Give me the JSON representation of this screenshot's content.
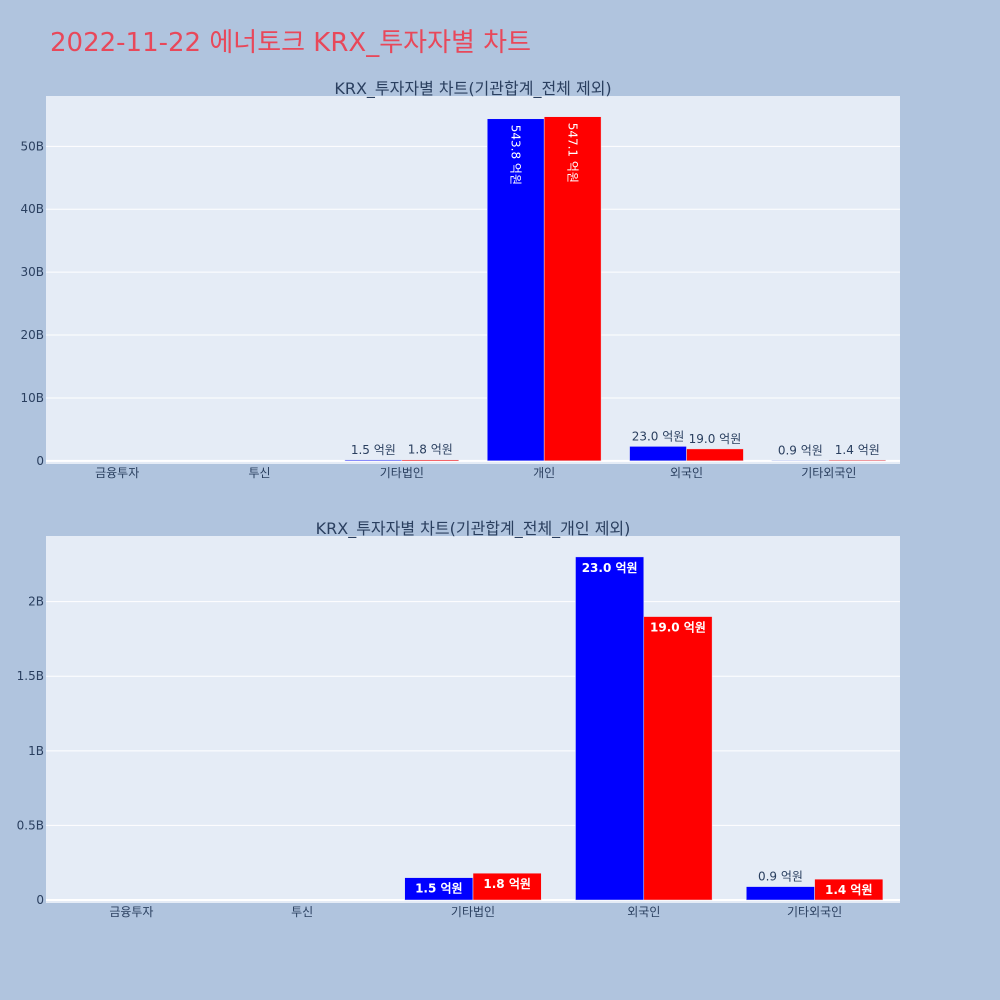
{
  "title": "2022-11-22 에너토크 KRX_투자자별 차트",
  "colors": {
    "background": "#b0c4de",
    "plot_bg": "#e5ecf6",
    "title": "#e8485a",
    "series_a": "#0000ff",
    "series_b": "#ff0000",
    "grid": "#ffffff"
  },
  "chart_data": [
    {
      "type": "bar",
      "title": "KRX_투자자별 차트(기관합계_전체 제외)",
      "categories": [
        "금융투자",
        "투신",
        "기타법인",
        "개인",
        "외국인",
        "기타외국인"
      ],
      "series": [
        {
          "color": "#0000ff",
          "values": [
            0,
            0,
            150000000,
            54380000000,
            2300000000,
            90000000
          ],
          "labels": [
            "",
            "",
            "1.5 억원",
            "543.8 억원",
            "23.0 억원",
            "0.9 억원"
          ]
        },
        {
          "color": "#ff0000",
          "values": [
            0,
            0,
            180000000,
            54710000000,
            1900000000,
            140000000
          ],
          "labels": [
            "",
            "",
            "1.8 억원",
            "547.1 억원",
            "19.0 억원",
            "1.4 억원"
          ]
        }
      ],
      "ylim": [
        -500000000,
        58000000000
      ],
      "yticks": [
        0,
        10000000000,
        20000000000,
        30000000000,
        40000000000,
        50000000000
      ],
      "ytick_labels": [
        "0",
        "10B",
        "20B",
        "30B",
        "40B",
        "50B"
      ],
      "xlabel": "",
      "ylabel": "",
      "grid": true
    },
    {
      "type": "bar",
      "title": "KRX_투자자별 차트(기관합계_전체_개인 제외)",
      "categories": [
        "금융투자",
        "투신",
        "기타법인",
        "외국인",
        "기타외국인"
      ],
      "series": [
        {
          "color": "#0000ff",
          "values": [
            0,
            0,
            150000000,
            2300000000,
            90000000
          ],
          "labels": [
            "",
            "",
            "1.5 억원",
            "23.0 억원",
            "0.9 억원"
          ]
        },
        {
          "color": "#ff0000",
          "values": [
            0,
            0,
            180000000,
            1900000000,
            140000000
          ],
          "labels": [
            "",
            "",
            "1.8 억원",
            "19.0 억원",
            "1.4 억원"
          ]
        }
      ],
      "ylim": [
        -20000000,
        2440000000
      ],
      "yticks": [
        0,
        500000000,
        1000000000,
        1500000000,
        2000000000
      ],
      "ytick_labels": [
        "0",
        "0.5B",
        "1B",
        "1.5B",
        "2B"
      ],
      "xlabel": "",
      "ylabel": "",
      "grid": true
    }
  ]
}
